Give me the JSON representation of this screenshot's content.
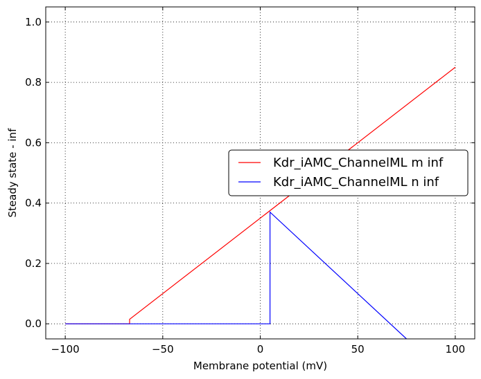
{
  "chart_data": {
    "type": "line",
    "xlabel": "Membrane potential (mV)",
    "ylabel": "Steady state - inf",
    "xlim": [
      -110,
      110
    ],
    "ylim": [
      -0.05,
      1.05
    ],
    "xticks": [
      -100,
      -50,
      0,
      50,
      100
    ],
    "xtick_labels": [
      "−100",
      "−50",
      "0",
      "50",
      "100"
    ],
    "yticks": [
      0.0,
      0.2,
      0.4,
      0.6,
      0.8,
      1.0
    ],
    "ytick_labels": [
      "0.0",
      "0.2",
      "0.4",
      "0.6",
      "0.8",
      "1.0"
    ],
    "grid": true,
    "legend_position": "center-right",
    "series": [
      {
        "name": "Kdr_iAMC_ChannelML m inf",
        "color": "#ff0000",
        "x": [
          -100,
          -67,
          -67,
          100
        ],
        "y": [
          0.0,
          0.0,
          0.015,
          0.85
        ]
      },
      {
        "name": "Kdr_iAMC_ChannelML n inf",
        "color": "#0000ff",
        "x": [
          -100,
          5,
          5,
          75
        ],
        "y": [
          0.0,
          0.0,
          0.37,
          -0.05
        ]
      }
    ]
  }
}
